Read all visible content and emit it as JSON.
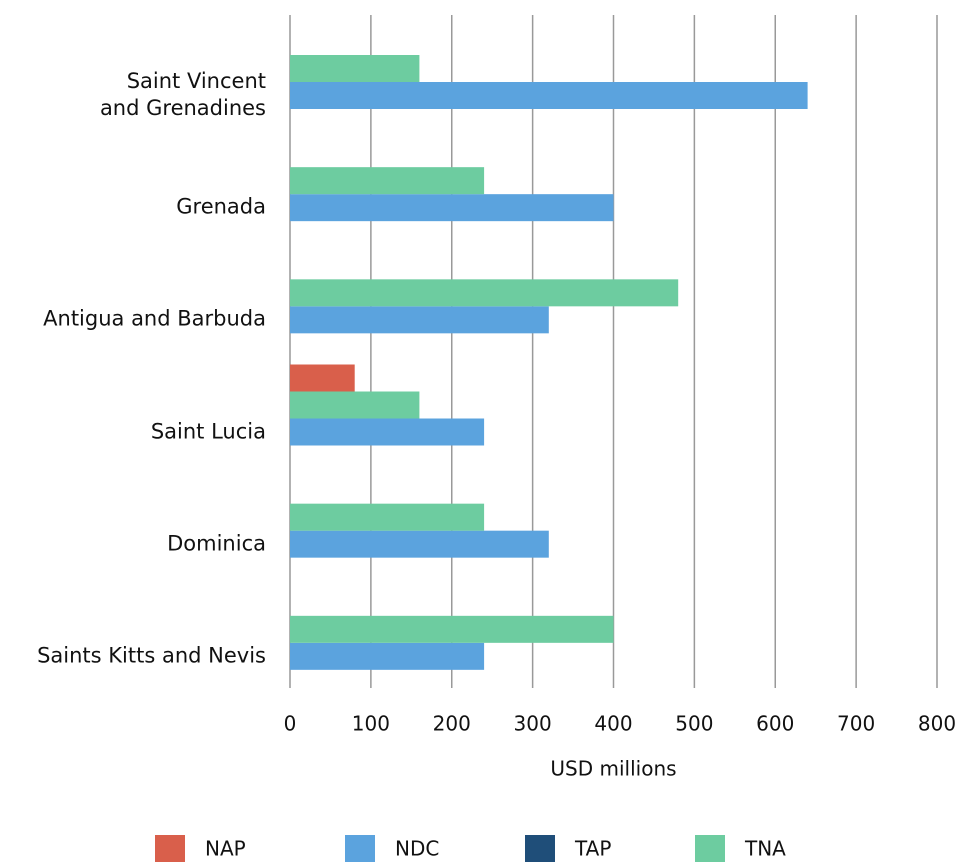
{
  "chart_data": {
    "type": "barh",
    "categories": [
      "Saint Vincent\nand Grenadines",
      "Grenada",
      "Antigua and Barbuda",
      "Saint Lucia",
      "Dominica",
      "Saints Kitts and Nevis"
    ],
    "series": [
      {
        "name": "NAP",
        "color": "#d95f4b",
        "values": [
          null,
          null,
          null,
          80,
          null,
          null
        ]
      },
      {
        "name": "NDC",
        "color": "#5ba3de",
        "values": [
          640,
          400,
          320,
          240,
          320,
          240
        ]
      },
      {
        "name": "TAP",
        "color": "#1f4e79",
        "values": [
          null,
          null,
          null,
          null,
          null,
          null
        ]
      },
      {
        "name": "TNA",
        "color": "#6dcca0",
        "values": [
          160,
          240,
          480,
          160,
          240,
          400
        ]
      }
    ],
    "xlabel": "USD millions",
    "xlim": [
      0,
      800
    ],
    "xticks": [
      0,
      100,
      200,
      300,
      400,
      500,
      600,
      700,
      800
    ],
    "grid": true,
    "legend": "bottom"
  }
}
